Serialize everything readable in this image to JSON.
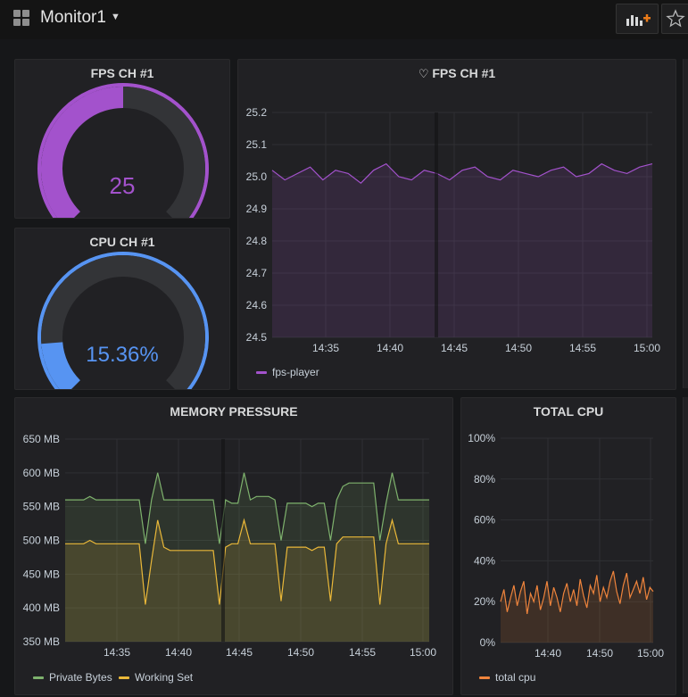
{
  "dashboard": {
    "title": "Monitor1"
  },
  "panels": {
    "fps_gauge": {
      "title": "FPS CH #1",
      "value": "25",
      "value_color": "#a352cc",
      "fraction": 0.5
    },
    "cpu_gauge": {
      "title": "CPU CH #1",
      "value": "15.36%",
      "value_color": "#5794f2",
      "fraction": 0.15
    },
    "fps_graph": {
      "title": "FPS CH #1",
      "legend": "fps-player",
      "color": "#a352cc"
    },
    "memory": {
      "title": "MEMORY PRESSURE",
      "legend": [
        "Private Bytes",
        "Working Set"
      ],
      "colors": [
        "#7eb26d",
        "#eab839"
      ]
    },
    "total_cpu": {
      "title": "TOTAL CPU",
      "legend": "total cpu",
      "color": "#ef843c"
    }
  },
  "chart_data": [
    {
      "type": "line",
      "title": "FPS CH #1",
      "ylim": [
        24.5,
        25.2
      ],
      "yticks": [
        "25.2",
        "25.1",
        "25.0",
        "24.9",
        "24.8",
        "24.7",
        "24.6",
        "24.5"
      ],
      "xticks": [
        "14:35",
        "14:40",
        "14:45",
        "14:50",
        "14:55",
        "15:00"
      ],
      "series": [
        {
          "name": "fps-player",
          "values": [
            25.02,
            24.99,
            25.01,
            25.03,
            24.99,
            25.02,
            25.01,
            24.98,
            25.02,
            25.04,
            25.0,
            24.99,
            25.02,
            25.01,
            24.99,
            25.02,
            25.03,
            25.0,
            24.99,
            25.02,
            25.01,
            25.0,
            25.02,
            25.03,
            25.0,
            25.01,
            25.04,
            25.02,
            25.01,
            25.03,
            25.04
          ]
        }
      ]
    },
    {
      "type": "line",
      "title": "MEMORY PRESSURE",
      "ylim": [
        350,
        650
      ],
      "yticks": [
        "650 MB",
        "600 MB",
        "550 MB",
        "500 MB",
        "450 MB",
        "400 MB",
        "350 MB"
      ],
      "xticks": [
        "14:35",
        "14:40",
        "14:45",
        "14:50",
        "14:55",
        "15:00"
      ],
      "series": [
        {
          "name": "Private Bytes",
          "values": [
            560,
            560,
            560,
            560,
            565,
            560,
            560,
            560,
            560,
            560,
            560,
            560,
            560,
            495,
            560,
            600,
            560,
            560,
            560,
            560,
            560,
            560,
            560,
            560,
            560,
            495,
            560,
            555,
            555,
            600,
            560,
            565,
            565,
            565,
            560,
            500,
            555,
            555,
            555,
            555,
            550,
            555,
            555,
            500,
            560,
            580,
            585,
            585,
            585,
            585,
            585,
            500,
            555,
            600,
            560,
            560,
            560,
            560,
            560,
            560
          ]
        },
        {
          "name": "Working Set",
          "values": [
            495,
            495,
            495,
            495,
            500,
            495,
            495,
            495,
            495,
            495,
            495,
            495,
            495,
            405,
            470,
            530,
            490,
            485,
            485,
            485,
            485,
            485,
            485,
            485,
            485,
            405,
            490,
            495,
            495,
            530,
            495,
            495,
            495,
            495,
            495,
            410,
            490,
            490,
            490,
            490,
            485,
            490,
            490,
            410,
            495,
            505,
            505,
            505,
            505,
            505,
            505,
            405,
            495,
            530,
            495,
            495,
            495,
            495,
            495,
            495
          ]
        }
      ]
    },
    {
      "type": "line",
      "title": "TOTAL CPU",
      "ylim": [
        0,
        100
      ],
      "yticks": [
        "100%",
        "80%",
        "60%",
        "40%",
        "20%",
        "0%"
      ],
      "xticks": [
        "14:40",
        "14:50",
        "15:00"
      ],
      "series": [
        {
          "name": "total cpu",
          "values": [
            20,
            26,
            15,
            22,
            28,
            18,
            25,
            30,
            14,
            24,
            20,
            28,
            16,
            22,
            30,
            18,
            27,
            22,
            15,
            24,
            29,
            20,
            26,
            18,
            31,
            23,
            17,
            28,
            24,
            33,
            20,
            27,
            22,
            30,
            35,
            25,
            19,
            28,
            34,
            22,
            26,
            30,
            24,
            32,
            21,
            27,
            25
          ]
        }
      ]
    }
  ]
}
